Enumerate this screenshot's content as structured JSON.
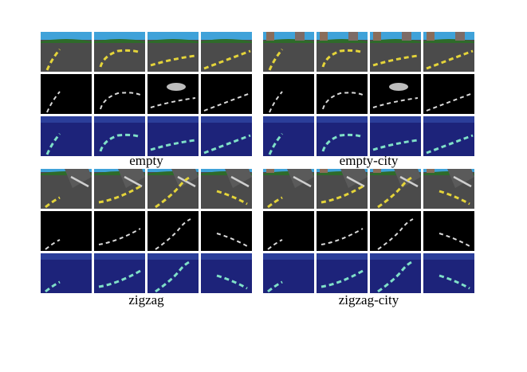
{
  "figure": {
    "panels": [
      {
        "caption": "empty",
        "rows": [
          "camera",
          "attention-mask",
          "overlay"
        ],
        "columns": 4
      },
      {
        "caption": "empty-city",
        "rows": [
          "camera",
          "attention-mask",
          "overlay"
        ],
        "columns": 4
      },
      {
        "caption": "zigzag",
        "rows": [
          "camera",
          "attention-mask",
          "overlay"
        ],
        "columns": 4
      },
      {
        "caption": "zigzag-city",
        "rows": [
          "camera",
          "attention-mask",
          "overlay"
        ],
        "columns": 4
      }
    ],
    "colors": {
      "sky": "#3fa2d9",
      "road": "#4b4b4b",
      "lane_yellow": "#e4d43a",
      "mask_bg": "#000000",
      "mask_line": "#d9d9d9",
      "overlay_bg": "#1d237a",
      "overlay_line": "#7fe0c8"
    }
  }
}
